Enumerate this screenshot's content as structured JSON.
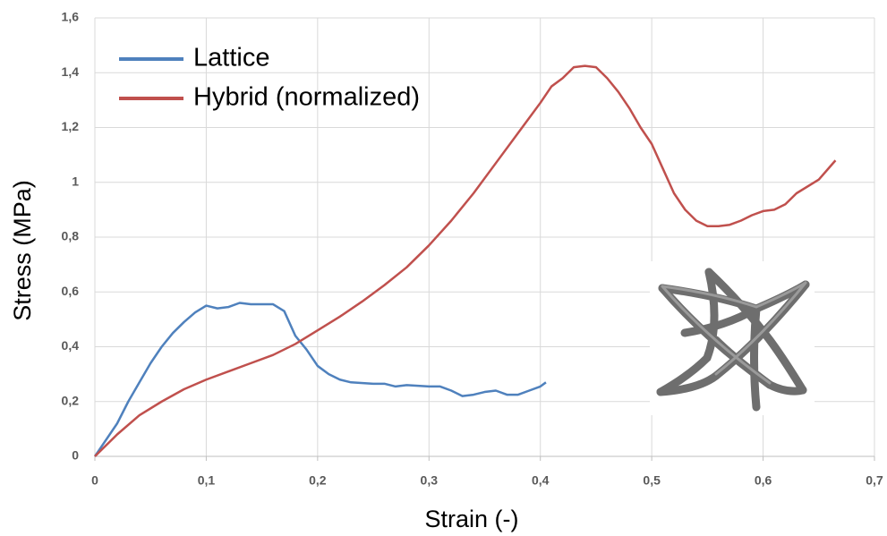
{
  "chart_data": {
    "type": "line",
    "xlabel": "Strain (-)",
    "ylabel": "Stress (MPa)",
    "xlim": [
      0,
      0.7
    ],
    "ylim": [
      0,
      1.6
    ],
    "xticks": [
      0,
      {
        "value": 0.1,
        "label": "0,1"
      },
      {
        "value": 0.2,
        "label": "0,2"
      },
      {
        "value": 0.3,
        "label": "0,3"
      },
      {
        "value": 0.4,
        "label": "0,4"
      },
      {
        "value": 0.5,
        "label": "0,5"
      },
      {
        "value": 0.6,
        "label": "0,6"
      },
      {
        "value": 0.7,
        "label": "0,7"
      }
    ],
    "yticks": [
      0,
      {
        "value": 0.2,
        "label": "0,2"
      },
      {
        "value": 0.4,
        "label": "0,4"
      },
      {
        "value": 0.6,
        "label": "0,6"
      },
      {
        "value": 0.8,
        "label": "0,8"
      },
      1,
      {
        "value": 1.2,
        "label": "1,2"
      },
      {
        "value": 1.4,
        "label": "1,4"
      },
      {
        "value": 1.6,
        "label": "1,6"
      }
    ],
    "grid": true,
    "legend": "upper-left",
    "series": [
      {
        "name": "Lattice",
        "color": "#4f81bd",
        "x": [
          0,
          0.02,
          0.03,
          0.04,
          0.05,
          0.06,
          0.07,
          0.08,
          0.09,
          0.1,
          0.11,
          0.12,
          0.13,
          0.14,
          0.15,
          0.16,
          0.17,
          0.18,
          0.19,
          0.2,
          0.21,
          0.22,
          0.23,
          0.25,
          0.26,
          0.27,
          0.28,
          0.3,
          0.31,
          0.32,
          0.33,
          0.34,
          0.35,
          0.36,
          0.37,
          0.38,
          0.39,
          0.4,
          0.405
        ],
        "values": [
          0,
          0.12,
          0.2,
          0.27,
          0.34,
          0.4,
          0.45,
          0.49,
          0.525,
          0.55,
          0.54,
          0.545,
          0.56,
          0.555,
          0.555,
          0.555,
          0.53,
          0.44,
          0.39,
          0.33,
          0.3,
          0.28,
          0.27,
          0.265,
          0.265,
          0.255,
          0.26,
          0.255,
          0.255,
          0.24,
          0.22,
          0.225,
          0.235,
          0.24,
          0.225,
          0.225,
          0.24,
          0.255,
          0.27
        ]
      },
      {
        "name": "Hybrid (normalized)",
        "color": "#c0504d",
        "x": [
          0,
          0.02,
          0.04,
          0.06,
          0.08,
          0.1,
          0.12,
          0.14,
          0.16,
          0.18,
          0.2,
          0.22,
          0.24,
          0.26,
          0.28,
          0.3,
          0.32,
          0.34,
          0.36,
          0.38,
          0.4,
          0.41,
          0.42,
          0.43,
          0.44,
          0.45,
          0.46,
          0.47,
          0.48,
          0.49,
          0.5,
          0.51,
          0.52,
          0.53,
          0.54,
          0.55,
          0.56,
          0.57,
          0.58,
          0.59,
          0.6,
          0.61,
          0.62,
          0.63,
          0.65,
          0.665
        ],
        "values": [
          0,
          0.08,
          0.15,
          0.2,
          0.245,
          0.28,
          0.31,
          0.34,
          0.37,
          0.41,
          0.46,
          0.51,
          0.565,
          0.625,
          0.69,
          0.77,
          0.86,
          0.96,
          1.07,
          1.18,
          1.29,
          1.35,
          1.38,
          1.42,
          1.425,
          1.42,
          1.38,
          1.33,
          1.27,
          1.2,
          1.14,
          1.05,
          0.96,
          0.9,
          0.86,
          0.84,
          0.84,
          0.845,
          0.86,
          0.88,
          0.895,
          0.9,
          0.92,
          0.96,
          1.01,
          1.08
        ]
      }
    ]
  }
}
